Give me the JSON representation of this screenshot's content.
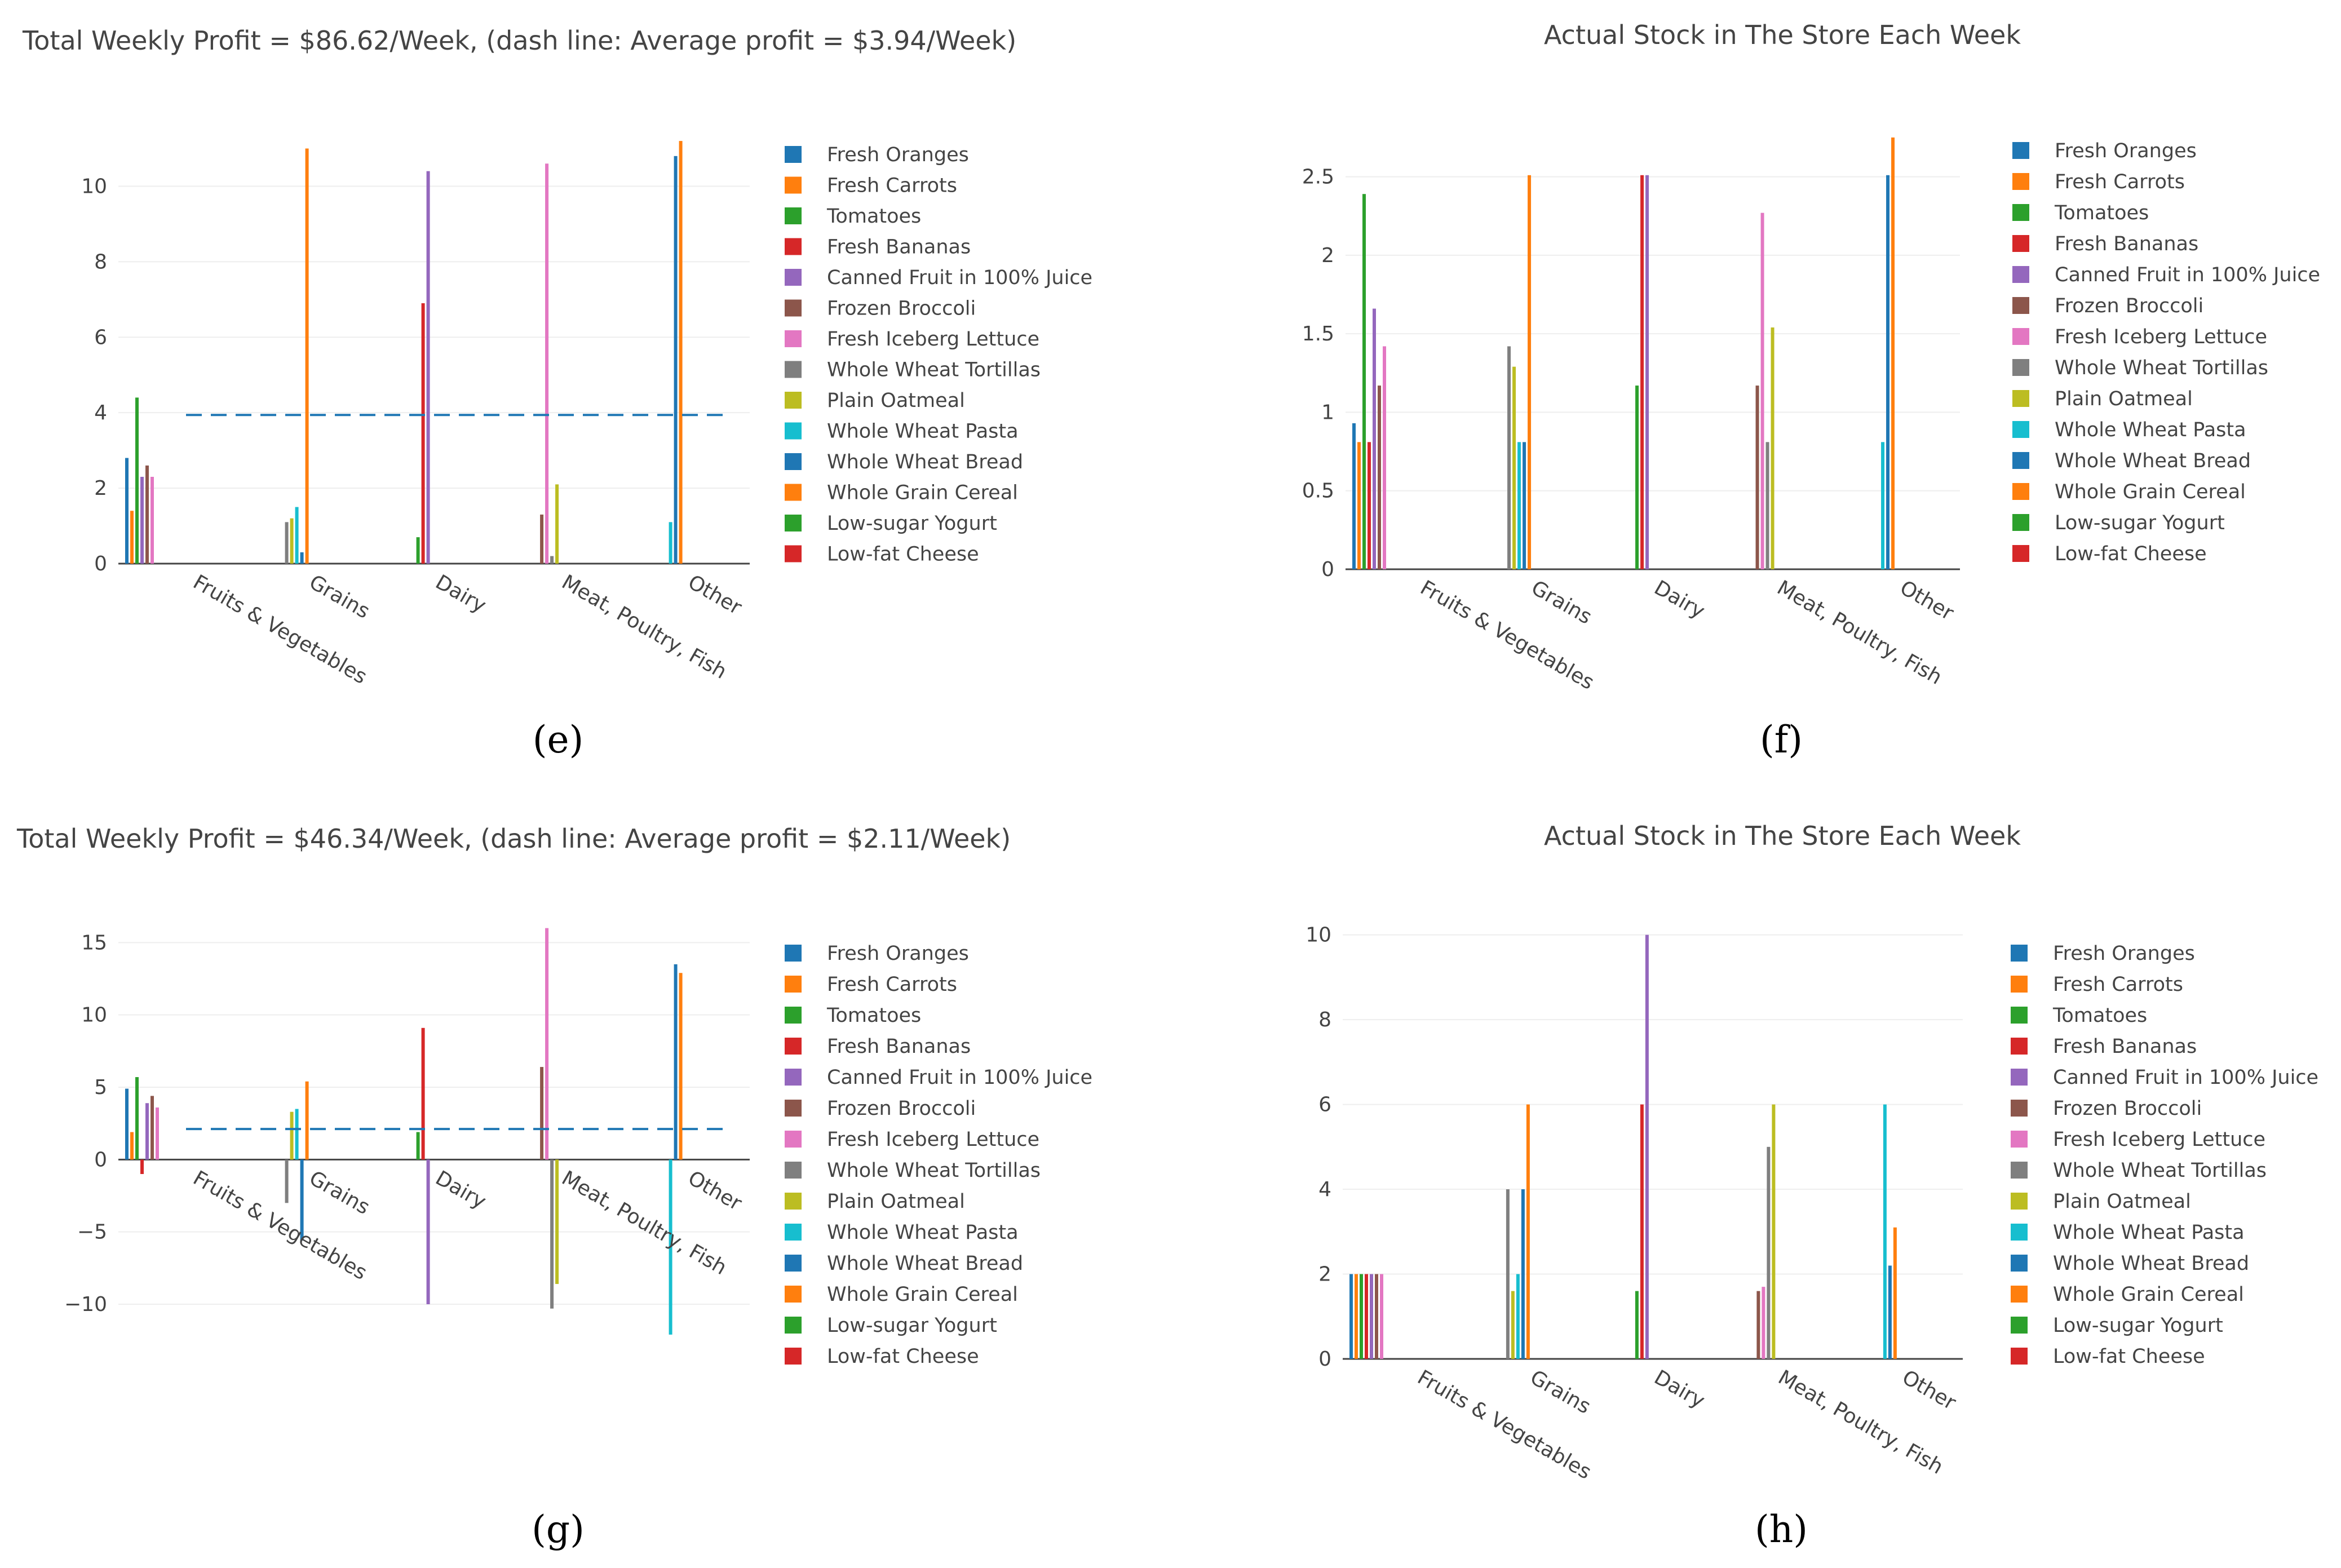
{
  "colors": {
    "Fresh Oranges": "#1f77b4",
    "Fresh Carrots": "#ff7f0e",
    "Tomatoes": "#2ca02c",
    "Fresh Bananas": "#d62728",
    "Canned Fruit in 100% Juice": "#9467bd",
    "Frozen Broccoli": "#8c564b",
    "Fresh Iceberg Lettuce": "#e377c2",
    "Whole Wheat Tortillas": "#7f7f7f",
    "Plain Oatmeal": "#bcbd22",
    "Whole Wheat Pasta": "#17becf",
    "Whole Wheat Bread": "#1f77b4",
    "Whole Grain Cereal": "#ff7f0e",
    "Low-sugar Yogurt": "#2ca02c",
    "Low-fat Cheese": "#d62728",
    "grid": "#eeeeee",
    "zero_line": "#444444",
    "axis_line": "#444444",
    "average_line": "#1f77b4"
  },
  "chart_data": [
    {
      "panel": "(e)",
      "type": "bar",
      "title": "Total Weekly Profit = $86.62/Week, (dash line: Average profit = $3.94/Week)",
      "xlabel": "",
      "ylabel": "",
      "categories": [
        "Fruits & Vegetables",
        "Grains",
        "Dairy",
        "Meat, Poultry, Fish",
        "Other"
      ],
      "ylim": [
        0,
        11.5
      ],
      "yticks": [
        0,
        2,
        4,
        6,
        8,
        10
      ],
      "average": 3.94,
      "legend": [
        "Fresh Oranges",
        "Fresh Carrots",
        "Tomatoes",
        "Fresh Bananas",
        "Canned Fruit in 100% Juice",
        "Frozen Broccoli",
        "Fresh Iceberg Lettuce",
        "Whole Wheat Tortillas",
        "Plain Oatmeal",
        "Whole Wheat Pasta",
        "Whole Wheat Bread",
        "Whole Grain Cereal",
        "Low-sugar Yogurt",
        "Low-fat Cheese"
      ],
      "bars": [
        {
          "category": 0,
          "series": "Fresh Oranges",
          "value": 2.8
        },
        {
          "category": 0,
          "series": "Fresh Carrots",
          "value": 1.4
        },
        {
          "category": 0,
          "series": "Tomatoes",
          "value": 4.4
        },
        {
          "category": 0,
          "series": "Canned Fruit in 100% Juice",
          "value": 2.3
        },
        {
          "category": 0,
          "series": "Frozen Broccoli",
          "value": 2.6
        },
        {
          "category": 0,
          "series": "Fresh Iceberg Lettuce",
          "value": 2.3
        },
        {
          "category": 1,
          "series": "Whole Wheat Tortillas",
          "value": 1.1
        },
        {
          "category": 1,
          "series": "Plain Oatmeal",
          "value": 1.2
        },
        {
          "category": 1,
          "series": "Whole Wheat Pasta",
          "value": 1.5
        },
        {
          "category": 1,
          "series": "Whole Wheat Bread",
          "value": 0.3
        },
        {
          "category": 1,
          "series": "Whole Grain Cereal",
          "value": 11.0
        },
        {
          "category": 2,
          "series": "Low-sugar Yogurt",
          "value": 0.7
        },
        {
          "category": 2,
          "series": "Fresh Bananas",
          "value": 6.9
        },
        {
          "category": 2,
          "series": "Canned Fruit in 100% Juice",
          "value": 10.4
        },
        {
          "category": 3,
          "series": "Frozen Broccoli",
          "value": 1.3
        },
        {
          "category": 3,
          "series": "Fresh Iceberg Lettuce",
          "value": 10.6
        },
        {
          "category": 3,
          "series": "Whole Wheat Tortillas",
          "value": 0.2
        },
        {
          "category": 3,
          "series": "Plain Oatmeal",
          "value": 2.1
        },
        {
          "category": 4,
          "series": "Whole Wheat Pasta",
          "value": 1.1
        },
        {
          "category": 4,
          "series": "Whole Wheat Bread",
          "value": 10.8
        },
        {
          "category": 4,
          "series": "Whole Grain Cereal",
          "value": 11.2
        }
      ]
    },
    {
      "panel": "(f)",
      "type": "bar",
      "title": "Actual Stock in The Store Each Week",
      "xlabel": "",
      "ylabel": "",
      "categories": [
        "Fruits & Vegetables",
        "Grains",
        "Dairy",
        "Meat, Poultry, Fish",
        "Other"
      ],
      "ylim": [
        0,
        2.8
      ],
      "yticks": [
        0,
        0.5,
        1,
        1.5,
        2,
        2.5
      ],
      "legend": [
        "Fresh Oranges",
        "Fresh Carrots",
        "Tomatoes",
        "Fresh Bananas",
        "Canned Fruit in 100% Juice",
        "Frozen Broccoli",
        "Fresh Iceberg Lettuce",
        "Whole Wheat Tortillas",
        "Plain Oatmeal",
        "Whole Wheat Pasta",
        "Whole Wheat Bread",
        "Whole Grain Cereal",
        "Low-sugar Yogurt",
        "Low-fat Cheese"
      ],
      "bars": [
        {
          "category": 0,
          "series": "Fresh Oranges",
          "value": 0.93
        },
        {
          "category": 0,
          "series": "Fresh Carrots",
          "value": 0.81
        },
        {
          "category": 0,
          "series": "Tomatoes",
          "value": 2.39
        },
        {
          "category": 0,
          "series": "Fresh Bananas",
          "value": 0.81
        },
        {
          "category": 0,
          "series": "Canned Fruit in 100% Juice",
          "value": 1.66
        },
        {
          "category": 0,
          "series": "Frozen Broccoli",
          "value": 1.17
        },
        {
          "category": 0,
          "series": "Fresh Iceberg Lettuce",
          "value": 1.42
        },
        {
          "category": 1,
          "series": "Whole Wheat Tortillas",
          "value": 1.42
        },
        {
          "category": 1,
          "series": "Plain Oatmeal",
          "value": 1.29
        },
        {
          "category": 1,
          "series": "Whole Wheat Pasta",
          "value": 0.81
        },
        {
          "category": 1,
          "series": "Whole Wheat Bread",
          "value": 0.81
        },
        {
          "category": 1,
          "series": "Whole Grain Cereal",
          "value": 2.51
        },
        {
          "category": 2,
          "series": "Low-sugar Yogurt",
          "value": 1.17
        },
        {
          "category": 2,
          "series": "Fresh Bananas",
          "value": 2.51
        },
        {
          "category": 2,
          "series": "Canned Fruit in 100% Juice",
          "value": 2.51
        },
        {
          "category": 3,
          "series": "Frozen Broccoli",
          "value": 1.17
        },
        {
          "category": 3,
          "series": "Fresh Iceberg Lettuce",
          "value": 2.27
        },
        {
          "category": 3,
          "series": "Whole Wheat Tortillas",
          "value": 0.81
        },
        {
          "category": 3,
          "series": "Plain Oatmeal",
          "value": 1.54
        },
        {
          "category": 4,
          "series": "Whole Wheat Pasta",
          "value": 0.81
        },
        {
          "category": 4,
          "series": "Whole Wheat Bread",
          "value": 2.51
        },
        {
          "category": 4,
          "series": "Whole Grain Cereal",
          "value": 2.75
        }
      ]
    },
    {
      "panel": "(g)",
      "type": "bar",
      "title": "Total Weekly Profit = $46.34/Week, (dash line: Average profit = $2.11/Week)",
      "xlabel": "",
      "ylabel": "",
      "categories": [
        "Fruits & Vegetables",
        "Grains",
        "Dairy",
        "Meat, Poultry, Fish",
        "Other"
      ],
      "ylim": [
        -13,
        17
      ],
      "yticks": [
        -10,
        -5,
        0,
        5,
        10,
        15
      ],
      "average": 2.11,
      "legend": [
        "Fresh Oranges",
        "Fresh Carrots",
        "Tomatoes",
        "Fresh Bananas",
        "Canned Fruit in 100% Juice",
        "Frozen Broccoli",
        "Fresh Iceberg Lettuce",
        "Whole Wheat Tortillas",
        "Plain Oatmeal",
        "Whole Wheat Pasta",
        "Whole Wheat Bread",
        "Whole Grain Cereal",
        "Low-sugar Yogurt",
        "Low-fat Cheese"
      ],
      "bars": [
        {
          "category": 0,
          "series": "Fresh Oranges",
          "value": 4.9
        },
        {
          "category": 0,
          "series": "Fresh Carrots",
          "value": 1.9
        },
        {
          "category": 0,
          "series": "Tomatoes",
          "value": 5.7
        },
        {
          "category": 0,
          "series": "Fresh Bananas",
          "value": -1.0
        },
        {
          "category": 0,
          "series": "Canned Fruit in 100% Juice",
          "value": 3.9
        },
        {
          "category": 0,
          "series": "Frozen Broccoli",
          "value": 4.4
        },
        {
          "category": 0,
          "series": "Fresh Iceberg Lettuce",
          "value": 3.6
        },
        {
          "category": 1,
          "series": "Whole Wheat Tortillas",
          "value": -3.0
        },
        {
          "category": 1,
          "series": "Plain Oatmeal",
          "value": 3.3
        },
        {
          "category": 1,
          "series": "Whole Wheat Pasta",
          "value": 3.5
        },
        {
          "category": 1,
          "series": "Whole Wheat Bread",
          "value": -5.6
        },
        {
          "category": 1,
          "series": "Whole Grain Cereal",
          "value": 5.4
        },
        {
          "category": 2,
          "series": "Low-sugar Yogurt",
          "value": 1.9
        },
        {
          "category": 2,
          "series": "Fresh Bananas",
          "value": 9.1
        },
        {
          "category": 2,
          "series": "Canned Fruit in 100% Juice",
          "value": -10.0
        },
        {
          "category": 3,
          "series": "Frozen Broccoli",
          "value": 6.4
        },
        {
          "category": 3,
          "series": "Fresh Iceberg Lettuce",
          "value": 16.0
        },
        {
          "category": 3,
          "series": "Whole Wheat Tortillas",
          "value": -10.3
        },
        {
          "category": 3,
          "series": "Plain Oatmeal",
          "value": -8.6
        },
        {
          "category": 4,
          "series": "Whole Wheat Pasta",
          "value": -12.1
        },
        {
          "category": 4,
          "series": "Whole Wheat Bread",
          "value": 13.5
        },
        {
          "category": 4,
          "series": "Whole Grain Cereal",
          "value": 12.9
        }
      ]
    },
    {
      "panel": "(h)",
      "type": "bar",
      "title": "Actual Stock in The Store Each Week",
      "xlabel": "",
      "ylabel": "",
      "categories": [
        "Fruits & Vegetables",
        "Grains",
        "Dairy",
        "Meat, Poultry, Fish",
        "Other"
      ],
      "ylim": [
        0,
        10.5
      ],
      "yticks": [
        0,
        2,
        4,
        6,
        8,
        10
      ],
      "legend": [
        "Fresh Oranges",
        "Fresh Carrots",
        "Tomatoes",
        "Fresh Bananas",
        "Canned Fruit in 100% Juice",
        "Frozen Broccoli",
        "Fresh Iceberg Lettuce",
        "Whole Wheat Tortillas",
        "Plain Oatmeal",
        "Whole Wheat Pasta",
        "Whole Wheat Bread",
        "Whole Grain Cereal",
        "Low-sugar Yogurt",
        "Low-fat Cheese"
      ],
      "bars": [
        {
          "category": 0,
          "series": "Fresh Oranges",
          "value": 2
        },
        {
          "category": 0,
          "series": "Fresh Carrots",
          "value": 2
        },
        {
          "category": 0,
          "series": "Tomatoes",
          "value": 2
        },
        {
          "category": 0,
          "series": "Fresh Bananas",
          "value": 2
        },
        {
          "category": 0,
          "series": "Canned Fruit in 100% Juice",
          "value": 2
        },
        {
          "category": 0,
          "series": "Frozen Broccoli",
          "value": 2
        },
        {
          "category": 0,
          "series": "Fresh Iceberg Lettuce",
          "value": 2
        },
        {
          "category": 1,
          "series": "Whole Wheat Tortillas",
          "value": 4
        },
        {
          "category": 1,
          "series": "Plain Oatmeal",
          "value": 1.6
        },
        {
          "category": 1,
          "series": "Whole Wheat Pasta",
          "value": 2
        },
        {
          "category": 1,
          "series": "Whole Wheat Bread",
          "value": 4
        },
        {
          "category": 1,
          "series": "Whole Grain Cereal",
          "value": 6
        },
        {
          "category": 2,
          "series": "Low-sugar Yogurt",
          "value": 1.6
        },
        {
          "category": 2,
          "series": "Fresh Bananas",
          "value": 6
        },
        {
          "category": 2,
          "series": "Canned Fruit in 100% Juice",
          "value": 10
        },
        {
          "category": 3,
          "series": "Frozen Broccoli",
          "value": 1.6
        },
        {
          "category": 3,
          "series": "Fresh Iceberg Lettuce",
          "value": 1.7
        },
        {
          "category": 3,
          "series": "Whole Wheat Tortillas",
          "value": 5
        },
        {
          "category": 3,
          "series": "Plain Oatmeal",
          "value": 6
        },
        {
          "category": 4,
          "series": "Whole Wheat Pasta",
          "value": 6
        },
        {
          "category": 4,
          "series": "Whole Wheat Bread",
          "value": 2.2
        },
        {
          "category": 4,
          "series": "Whole Grain Cereal",
          "value": 3.1
        }
      ]
    }
  ]
}
